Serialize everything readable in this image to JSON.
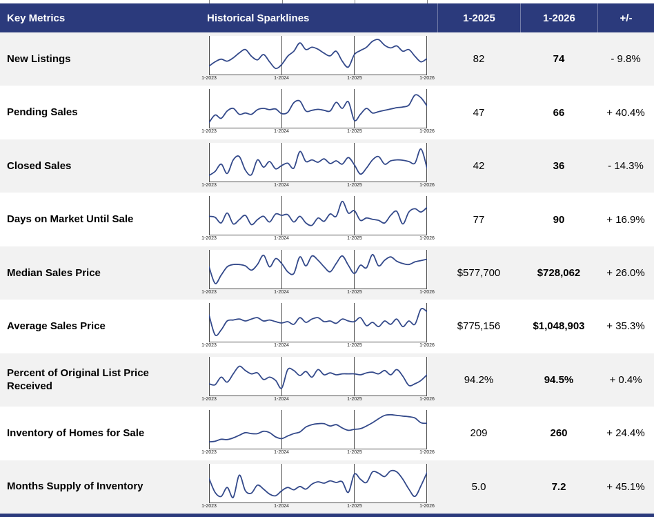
{
  "header": {
    "key_metrics": "Key Metrics",
    "sparklines": "Historical Sparklines",
    "col_2025": "1-2025",
    "col_2026": "1-2026",
    "change": "+/-"
  },
  "sparkline_axis": [
    "1-2023",
    "1-2024",
    "1-2025",
    "1-2026"
  ],
  "colors": {
    "header_bg": "#2b3a7c",
    "footer_bg": "#2b3a7c",
    "row_alt_bg": "#f2f2f2",
    "sparkline_line": "#33498a",
    "chart_grid": "#4d4d4d"
  },
  "rows": [
    {
      "label": "New Listings",
      "v2025": "82",
      "v2026": "74",
      "change": "- 9.8%"
    },
    {
      "label": "Pending Sales",
      "v2025": "47",
      "v2026": "66",
      "change": "+ 40.4%"
    },
    {
      "label": "Closed Sales",
      "v2025": "42",
      "v2026": "36",
      "change": "- 14.3%"
    },
    {
      "label": "Days on Market Until Sale",
      "v2025": "77",
      "v2026": "90",
      "change": "+ 16.9%"
    },
    {
      "label": "Median Sales Price",
      "v2025": "$577,700",
      "v2026": "$728,062",
      "change": "+ 26.0%"
    },
    {
      "label": "Average Sales Price",
      "v2025": "$775,156",
      "v2026": "$1,048,903",
      "change": "+ 35.3%"
    },
    {
      "label": "Percent of Original List Price Received",
      "v2025": "94.2%",
      "v2026": "94.5%",
      "change": "+ 0.4%"
    },
    {
      "label": "Inventory of Homes for Sale",
      "v2025": "209",
      "v2026": "260",
      "change": "+ 24.4%"
    },
    {
      "label": "Months Supply of Inventory",
      "v2025": "5.0",
      "v2026": "7.2",
      "change": "+ 45.1%"
    }
  ],
  "chart_data": {
    "type": "line",
    "subtype": "sparklines-monthly",
    "x_ticks": [
      "1-2023",
      "1-2024",
      "1-2025",
      "1-2026"
    ],
    "x_unit": "month",
    "points_per_series": 37,
    "y_scale_note": "sparklines are unlabeled; values estimated and normalized 0-100 per series min-max",
    "grid": "vertical lines at each January, bottom axis, left/right borders",
    "legend_position": "none",
    "series": [
      {
        "metric": "New Listings",
        "values": [
          15,
          28,
          36,
          30,
          40,
          55,
          65,
          45,
          34,
          50,
          28,
          8,
          20,
          45,
          60,
          85,
          65,
          72,
          66,
          54,
          46,
          60,
          30,
          12,
          50,
          62,
          72,
          90,
          95,
          78,
          70,
          76,
          60,
          65,
          45,
          28,
          38
        ]
      },
      {
        "metric": "Pending Sales",
        "values": [
          5,
          28,
          18,
          40,
          48,
          30,
          34,
          30,
          44,
          48,
          44,
          46,
          32,
          36,
          65,
          70,
          40,
          42,
          45,
          42,
          40,
          66,
          48,
          68,
          12,
          30,
          48,
          34,
          38,
          42,
          46,
          50,
          52,
          58,
          88,
          80,
          55
        ]
      },
      {
        "metric": "Closed Sales",
        "values": [
          8,
          20,
          42,
          14,
          55,
          65,
          24,
          10,
          55,
          33,
          50,
          28,
          38,
          45,
          30,
          80,
          50,
          55,
          48,
          58,
          44,
          52,
          42,
          62,
          40,
          12,
          30,
          55,
          65,
          42,
          52,
          55,
          54,
          50,
          45,
          88,
          30
        ]
      },
      {
        "metric": "Days on Market Until Sale",
        "values": [
          45,
          42,
          25,
          55,
          22,
          35,
          48,
          20,
          35,
          45,
          28,
          52,
          48,
          50,
          28,
          45,
          25,
          18,
          40,
          30,
          52,
          45,
          90,
          55,
          62,
          33,
          40,
          36,
          33,
          25,
          48,
          60,
          22,
          58,
          68,
          58,
          72
        ]
      },
      {
        "metric": "Median Sales Price",
        "values": [
          55,
          5,
          30,
          55,
          62,
          62,
          58,
          45,
          62,
          90,
          55,
          80,
          65,
          40,
          35,
          85,
          58,
          88,
          75,
          55,
          40,
          65,
          88,
          60,
          35,
          60,
          52,
          92,
          58,
          75,
          85,
          72,
          65,
          62,
          70,
          74,
          78
        ]
      },
      {
        "metric": "Average Sales Price",
        "values": [
          70,
          10,
          25,
          52,
          55,
          58,
          52,
          58,
          62,
          52,
          55,
          50,
          46,
          50,
          42,
          62,
          48,
          58,
          62,
          50,
          52,
          45,
          58,
          52,
          50,
          62,
          38,
          48,
          35,
          52,
          42,
          58,
          35,
          52,
          42,
          88,
          80
        ]
      },
      {
        "metric": "Percent of Original List Price Received",
        "values": [
          25,
          22,
          45,
          30,
          55,
          78,
          65,
          55,
          58,
          38,
          45,
          35,
          12,
          68,
          65,
          50,
          62,
          45,
          68,
          52,
          58,
          52,
          55,
          55,
          55,
          52,
          58,
          60,
          55,
          65,
          52,
          68,
          48,
          20,
          25,
          35,
          52
        ]
      },
      {
        "metric": "Inventory of Homes for Sale",
        "values": [
          10,
          12,
          18,
          17,
          22,
          30,
          38,
          35,
          35,
          42,
          38,
          25,
          20,
          28,
          35,
          40,
          55,
          62,
          65,
          65,
          58,
          62,
          52,
          45,
          48,
          50,
          58,
          68,
          80,
          90,
          92,
          90,
          88,
          86,
          82,
          68,
          66
        ]
      },
      {
        "metric": "Months Supply of Inventory",
        "values": [
          62,
          20,
          8,
          35,
          5,
          72,
          25,
          18,
          42,
          30,
          15,
          10,
          25,
          35,
          28,
          38,
          30,
          45,
          52,
          48,
          55,
          50,
          52,
          20,
          75,
          60,
          50,
          82,
          78,
          68,
          85,
          82,
          60,
          30,
          8,
          40,
          80
        ]
      }
    ]
  }
}
